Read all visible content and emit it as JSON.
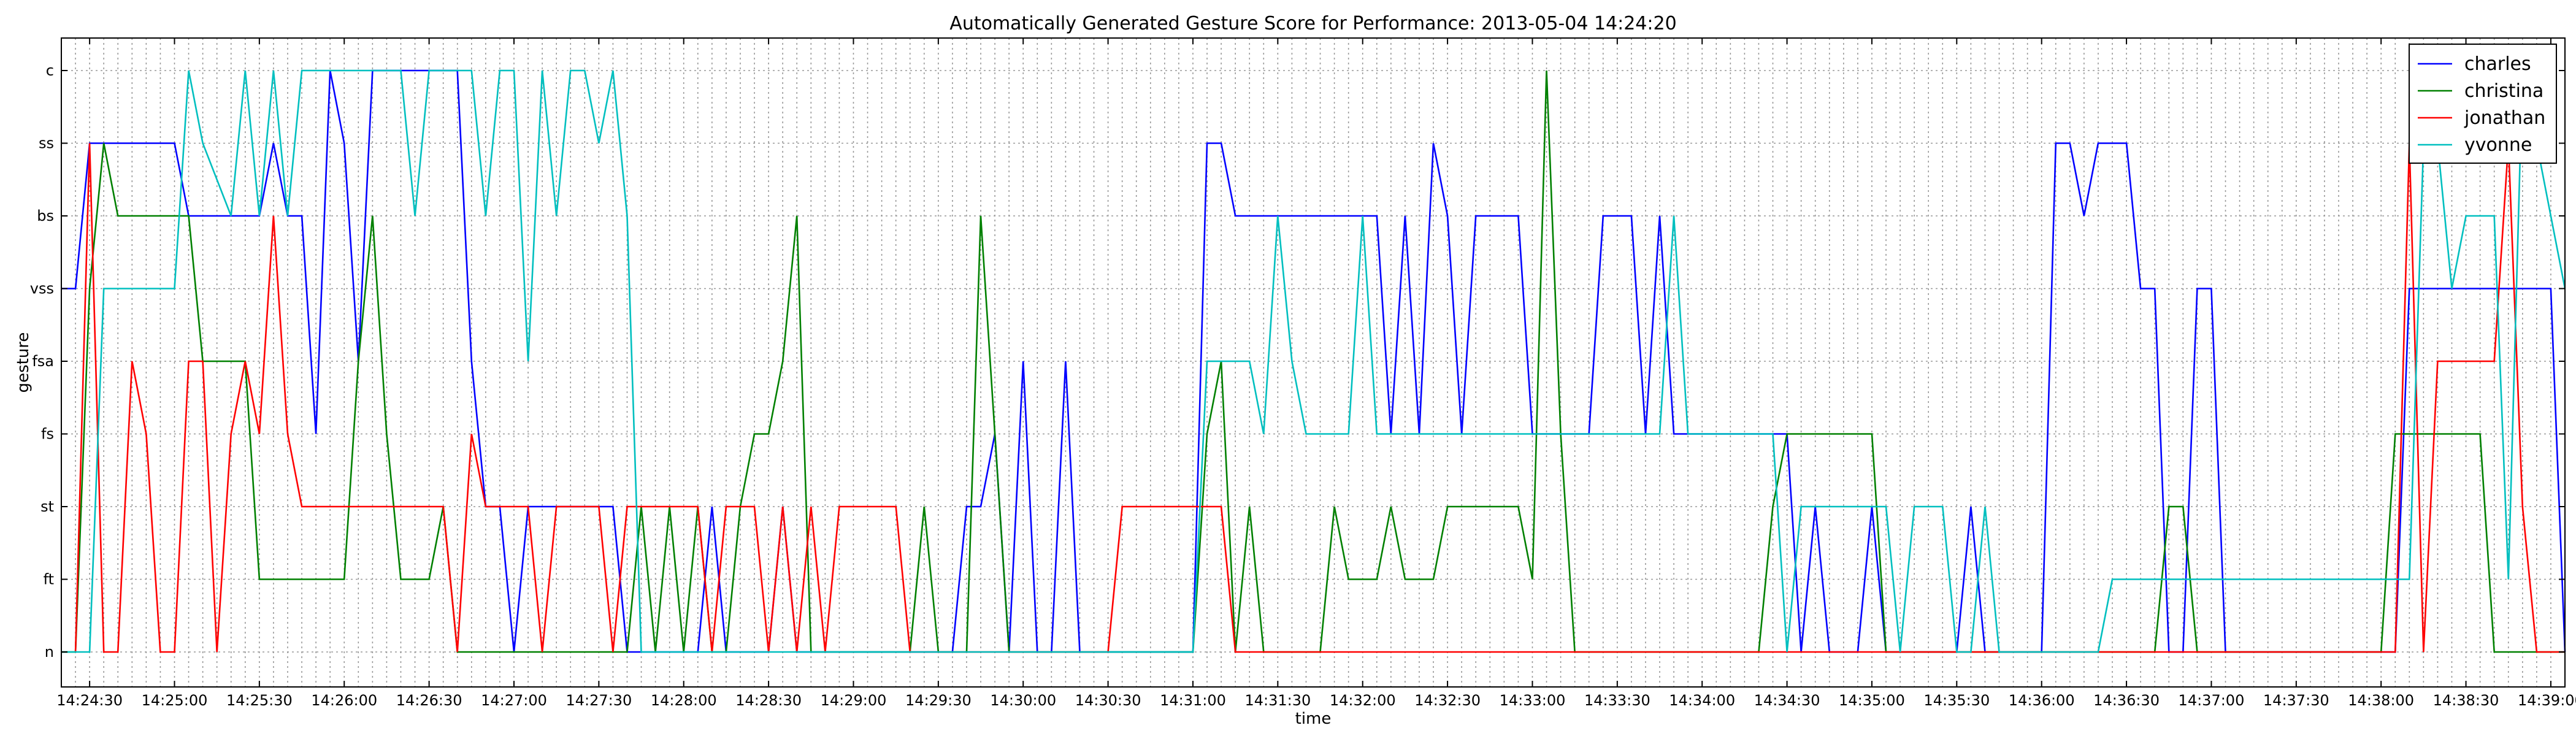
{
  "chart_data": {
    "type": "line",
    "title": "Automatically Generated Gesture Score for Performance: 2013-05-04 14:24:20",
    "xlabel": "time",
    "ylabel": "gesture",
    "x_unit": "time of day (HH:MM:SS)",
    "xlim": [
      "14:24:20",
      "14:39:05"
    ],
    "x_ticks": [
      "14:24:30",
      "14:25:00",
      "14:25:30",
      "14:26:00",
      "14:26:30",
      "14:27:00",
      "14:27:30",
      "14:28:00",
      "14:28:30",
      "14:29:00",
      "14:29:30",
      "14:30:00",
      "14:30:30",
      "14:31:00",
      "14:31:30",
      "14:32:00",
      "14:32:30",
      "14:33:00",
      "14:33:30",
      "14:34:00",
      "14:34:30",
      "14:35:00",
      "14:35:30",
      "14:36:00",
      "14:36:30",
      "14:37:00",
      "14:37:30",
      "14:38:00",
      "14:38:30",
      "14:39:00"
    ],
    "categories": [
      "n",
      "ft",
      "st",
      "fs",
      "fsa",
      "vss",
      "bs",
      "ss",
      "c"
    ],
    "grid": true,
    "legend_position": "top-right",
    "series": [
      {
        "name": "charles",
        "color": "#0000ff",
        "points": [
          [
            "14:24:20",
            "vss"
          ],
          [
            "14:24:25",
            "vss"
          ],
          [
            "14:24:30",
            "ss"
          ],
          [
            "14:25:00",
            "ss"
          ],
          [
            "14:25:05",
            "bs"
          ],
          [
            "14:25:30",
            "bs"
          ],
          [
            "14:25:35",
            "ss"
          ],
          [
            "14:25:40",
            "bs"
          ],
          [
            "14:25:45",
            "bs"
          ],
          [
            "14:25:50",
            "fs"
          ],
          [
            "14:25:55",
            "c"
          ],
          [
            "14:26:00",
            "ss"
          ],
          [
            "14:26:05",
            "fsa"
          ],
          [
            "14:26:10",
            "c"
          ],
          [
            "14:26:40",
            "c"
          ],
          [
            "14:26:45",
            "fsa"
          ],
          [
            "14:26:50",
            "st"
          ],
          [
            "14:26:55",
            "st"
          ],
          [
            "14:27:00",
            "n"
          ],
          [
            "14:27:05",
            "st"
          ],
          [
            "14:27:35",
            "st"
          ],
          [
            "14:27:40",
            "n"
          ],
          [
            "14:28:05",
            "n"
          ],
          [
            "14:28:10",
            "st"
          ],
          [
            "14:28:15",
            "n"
          ],
          [
            "14:28:30",
            "n"
          ],
          [
            "14:28:35",
            "st"
          ],
          [
            "14:28:40",
            "n"
          ],
          [
            "14:29:35",
            "n"
          ],
          [
            "14:29:40",
            "st"
          ],
          [
            "14:29:45",
            "st"
          ],
          [
            "14:29:50",
            "fs"
          ],
          [
            "14:29:55",
            "n"
          ],
          [
            "14:30:00",
            "fsa"
          ],
          [
            "14:30:05",
            "n"
          ],
          [
            "14:30:10",
            "n"
          ],
          [
            "14:30:15",
            "fsa"
          ],
          [
            "14:30:20",
            "n"
          ],
          [
            "14:31:00",
            "n"
          ],
          [
            "14:31:05",
            "ss"
          ],
          [
            "14:31:10",
            "ss"
          ],
          [
            "14:31:15",
            "bs"
          ],
          [
            "14:32:05",
            "bs"
          ],
          [
            "14:32:10",
            "fs"
          ],
          [
            "14:32:15",
            "bs"
          ],
          [
            "14:32:20",
            "fs"
          ],
          [
            "14:32:25",
            "ss"
          ],
          [
            "14:32:30",
            "bs"
          ],
          [
            "14:32:35",
            "fs"
          ],
          [
            "14:32:40",
            "bs"
          ],
          [
            "14:32:55",
            "bs"
          ],
          [
            "14:33:00",
            "fs"
          ],
          [
            "14:33:20",
            "fs"
          ],
          [
            "14:33:25",
            "bs"
          ],
          [
            "14:33:35",
            "bs"
          ],
          [
            "14:33:40",
            "fs"
          ],
          [
            "14:33:45",
            "bs"
          ],
          [
            "14:33:50",
            "fs"
          ],
          [
            "14:34:25",
            "fs"
          ],
          [
            "14:34:30",
            "fs"
          ],
          [
            "14:34:35",
            "n"
          ],
          [
            "14:34:40",
            "st"
          ],
          [
            "14:34:45",
            "n"
          ],
          [
            "14:34:55",
            "n"
          ],
          [
            "14:35:00",
            "st"
          ],
          [
            "14:35:05",
            "n"
          ],
          [
            "14:35:30",
            "n"
          ],
          [
            "14:35:35",
            "st"
          ],
          [
            "14:35:40",
            "n"
          ],
          [
            "14:36:00",
            "n"
          ],
          [
            "14:36:05",
            "ss"
          ],
          [
            "14:36:10",
            "ss"
          ],
          [
            "14:36:15",
            "bs"
          ],
          [
            "14:36:20",
            "ss"
          ],
          [
            "14:36:30",
            "ss"
          ],
          [
            "14:36:35",
            "vss"
          ],
          [
            "14:36:40",
            "vss"
          ],
          [
            "14:36:45",
            "n"
          ],
          [
            "14:36:50",
            "n"
          ],
          [
            "14:36:55",
            "vss"
          ],
          [
            "14:37:00",
            "vss"
          ],
          [
            "14:37:05",
            "n"
          ],
          [
            "14:38:05",
            "n"
          ],
          [
            "14:38:10",
            "vss"
          ],
          [
            "14:39:00",
            "vss"
          ],
          [
            "14:39:05",
            "n"
          ]
        ]
      },
      {
        "name": "christina",
        "color": "#008000",
        "points": [
          [
            "14:24:20",
            "n"
          ],
          [
            "14:24:25",
            "n"
          ],
          [
            "14:24:30",
            "vss"
          ],
          [
            "14:24:35",
            "ss"
          ],
          [
            "14:24:40",
            "bs"
          ],
          [
            "14:25:00",
            "bs"
          ],
          [
            "14:25:05",
            "bs"
          ],
          [
            "14:25:10",
            "fsa"
          ],
          [
            "14:25:20",
            "fsa"
          ],
          [
            "14:25:25",
            "fsa"
          ],
          [
            "14:25:30",
            "ft"
          ],
          [
            "14:26:00",
            "ft"
          ],
          [
            "14:26:05",
            "fsa"
          ],
          [
            "14:26:10",
            "bs"
          ],
          [
            "14:26:15",
            "fs"
          ],
          [
            "14:26:20",
            "ft"
          ],
          [
            "14:26:30",
            "ft"
          ],
          [
            "14:26:35",
            "st"
          ],
          [
            "14:26:40",
            "n"
          ],
          [
            "14:27:40",
            "n"
          ],
          [
            "14:27:45",
            "st"
          ],
          [
            "14:27:50",
            "n"
          ],
          [
            "14:27:55",
            "st"
          ],
          [
            "14:28:00",
            "n"
          ],
          [
            "14:28:05",
            "st"
          ],
          [
            "14:28:10",
            "n"
          ],
          [
            "14:28:15",
            "n"
          ],
          [
            "14:28:20",
            "st"
          ],
          [
            "14:28:25",
            "fs"
          ],
          [
            "14:28:30",
            "fs"
          ],
          [
            "14:28:35",
            "fsa"
          ],
          [
            "14:28:40",
            "bs"
          ],
          [
            "14:28:45",
            "n"
          ],
          [
            "14:29:20",
            "n"
          ],
          [
            "14:29:25",
            "st"
          ],
          [
            "14:29:30",
            "n"
          ],
          [
            "14:29:40",
            "n"
          ],
          [
            "14:29:45",
            "bs"
          ],
          [
            "14:29:50",
            "fs"
          ],
          [
            "14:29:55",
            "n"
          ],
          [
            "14:31:00",
            "n"
          ],
          [
            "14:31:05",
            "fs"
          ],
          [
            "14:31:10",
            "fsa"
          ],
          [
            "14:31:15",
            "n"
          ],
          [
            "14:31:20",
            "st"
          ],
          [
            "14:31:25",
            "n"
          ],
          [
            "14:31:45",
            "n"
          ],
          [
            "14:31:50",
            "st"
          ],
          [
            "14:31:55",
            "ft"
          ],
          [
            "14:32:05",
            "ft"
          ],
          [
            "14:32:10",
            "st"
          ],
          [
            "14:32:15",
            "ft"
          ],
          [
            "14:32:25",
            "ft"
          ],
          [
            "14:32:30",
            "st"
          ],
          [
            "14:32:55",
            "st"
          ],
          [
            "14:33:00",
            "ft"
          ],
          [
            "14:33:05",
            "c"
          ],
          [
            "14:33:10",
            "fs"
          ],
          [
            "14:33:15",
            "n"
          ],
          [
            "14:34:20",
            "n"
          ],
          [
            "14:34:25",
            "st"
          ],
          [
            "14:34:30",
            "fs"
          ],
          [
            "14:34:35",
            "fs"
          ],
          [
            "14:35:00",
            "fs"
          ],
          [
            "14:35:05",
            "n"
          ],
          [
            "14:36:40",
            "n"
          ],
          [
            "14:36:45",
            "st"
          ],
          [
            "14:36:50",
            "st"
          ],
          [
            "14:36:55",
            "n"
          ],
          [
            "14:38:00",
            "n"
          ],
          [
            "14:38:05",
            "fs"
          ],
          [
            "14:38:35",
            "fs"
          ],
          [
            "14:38:40",
            "n"
          ],
          [
            "14:39:05",
            "n"
          ]
        ]
      },
      {
        "name": "jonathan",
        "color": "#ff0000",
        "points": [
          [
            "14:24:25",
            "n"
          ],
          [
            "14:24:30",
            "ss"
          ],
          [
            "14:24:35",
            "n"
          ],
          [
            "14:24:40",
            "n"
          ],
          [
            "14:24:45",
            "fsa"
          ],
          [
            "14:24:50",
            "fs"
          ],
          [
            "14:24:55",
            "n"
          ],
          [
            "14:25:00",
            "n"
          ],
          [
            "14:25:05",
            "fsa"
          ],
          [
            "14:25:10",
            "fsa"
          ],
          [
            "14:25:15",
            "n"
          ],
          [
            "14:25:20",
            "fs"
          ],
          [
            "14:25:25",
            "fsa"
          ],
          [
            "14:25:30",
            "fs"
          ],
          [
            "14:25:35",
            "bs"
          ],
          [
            "14:25:40",
            "fs"
          ],
          [
            "14:25:45",
            "st"
          ],
          [
            "14:26:35",
            "st"
          ],
          [
            "14:26:40",
            "n"
          ],
          [
            "14:26:45",
            "fs"
          ],
          [
            "14:26:50",
            "st"
          ],
          [
            "14:27:05",
            "st"
          ],
          [
            "14:27:10",
            "n"
          ],
          [
            "14:27:15",
            "st"
          ],
          [
            "14:27:30",
            "st"
          ],
          [
            "14:27:35",
            "n"
          ],
          [
            "14:27:40",
            "st"
          ],
          [
            "14:28:05",
            "st"
          ],
          [
            "14:28:10",
            "n"
          ],
          [
            "14:28:15",
            "st"
          ],
          [
            "14:28:25",
            "st"
          ],
          [
            "14:28:30",
            "n"
          ],
          [
            "14:28:35",
            "st"
          ],
          [
            "14:28:40",
            "n"
          ],
          [
            "14:28:45",
            "st"
          ],
          [
            "14:28:50",
            "n"
          ],
          [
            "14:28:55",
            "st"
          ],
          [
            "14:29:15",
            "st"
          ],
          [
            "14:29:20",
            "n"
          ],
          [
            "14:30:30",
            "n"
          ],
          [
            "14:30:35",
            "st"
          ],
          [
            "14:31:00",
            "st"
          ],
          [
            "14:31:05",
            "st"
          ],
          [
            "14:31:10",
            "st"
          ],
          [
            "14:31:15",
            "n"
          ],
          [
            "14:38:05",
            "n"
          ],
          [
            "14:38:10",
            "ss"
          ],
          [
            "14:38:15",
            "n"
          ],
          [
            "14:38:20",
            "fsa"
          ],
          [
            "14:38:40",
            "fsa"
          ],
          [
            "14:38:45",
            "ss"
          ],
          [
            "14:38:50",
            "st"
          ],
          [
            "14:38:55",
            "n"
          ],
          [
            "14:39:05",
            "n"
          ]
        ]
      },
      {
        "name": "yvonne",
        "color": "#00bfbf",
        "points": [
          [
            "14:24:20",
            "n"
          ],
          [
            "14:24:25",
            "n"
          ],
          [
            "14:24:30",
            "n"
          ],
          [
            "14:24:35",
            "vss"
          ],
          [
            "14:25:00",
            "vss"
          ],
          [
            "14:25:05",
            "c"
          ],
          [
            "14:25:10",
            "ss"
          ],
          [
            "14:25:20",
            "bs"
          ],
          [
            "14:25:25",
            "c"
          ],
          [
            "14:25:30",
            "bs"
          ],
          [
            "14:25:35",
            "c"
          ],
          [
            "14:25:40",
            "bs"
          ],
          [
            "14:25:45",
            "c"
          ],
          [
            "14:26:20",
            "c"
          ],
          [
            "14:26:25",
            "bs"
          ],
          [
            "14:26:30",
            "c"
          ],
          [
            "14:26:45",
            "c"
          ],
          [
            "14:26:50",
            "bs"
          ],
          [
            "14:26:55",
            "c"
          ],
          [
            "14:27:00",
            "c"
          ],
          [
            "14:27:05",
            "fsa"
          ],
          [
            "14:27:10",
            "c"
          ],
          [
            "14:27:15",
            "bs"
          ],
          [
            "14:27:20",
            "c"
          ],
          [
            "14:27:25",
            "c"
          ],
          [
            "14:27:30",
            "ss"
          ],
          [
            "14:27:35",
            "c"
          ],
          [
            "14:27:40",
            "bs"
          ],
          [
            "14:27:45",
            "n"
          ],
          [
            "14:31:00",
            "n"
          ],
          [
            "14:31:05",
            "fsa"
          ],
          [
            "14:31:20",
            "fsa"
          ],
          [
            "14:31:25",
            "fs"
          ],
          [
            "14:31:30",
            "bs"
          ],
          [
            "14:31:35",
            "fsa"
          ],
          [
            "14:31:40",
            "fs"
          ],
          [
            "14:31:55",
            "fs"
          ],
          [
            "14:32:00",
            "bs"
          ],
          [
            "14:32:05",
            "fs"
          ],
          [
            "14:33:45",
            "fs"
          ],
          [
            "14:33:50",
            "bs"
          ],
          [
            "14:33:55",
            "fs"
          ],
          [
            "14:34:25",
            "fs"
          ],
          [
            "14:34:30",
            "n"
          ],
          [
            "14:34:35",
            "st"
          ],
          [
            "14:35:05",
            "st"
          ],
          [
            "14:35:10",
            "n"
          ],
          [
            "14:35:15",
            "st"
          ],
          [
            "14:35:25",
            "st"
          ],
          [
            "14:35:30",
            "n"
          ],
          [
            "14:35:35",
            "n"
          ],
          [
            "14:35:40",
            "st"
          ],
          [
            "14:35:45",
            "n"
          ],
          [
            "14:36:20",
            "n"
          ],
          [
            "14:36:25",
            "ft"
          ],
          [
            "14:38:10",
            "ft"
          ],
          [
            "14:38:15",
            "ss"
          ],
          [
            "14:38:20",
            "ss"
          ],
          [
            "14:38:25",
            "vss"
          ],
          [
            "14:38:30",
            "bs"
          ],
          [
            "14:38:40",
            "bs"
          ],
          [
            "14:38:45",
            "ft"
          ],
          [
            "14:38:50",
            "c"
          ],
          [
            "14:38:55",
            "ss"
          ],
          [
            "14:39:00",
            "bs"
          ],
          [
            "14:39:05",
            "vss"
          ]
        ]
      }
    ]
  }
}
